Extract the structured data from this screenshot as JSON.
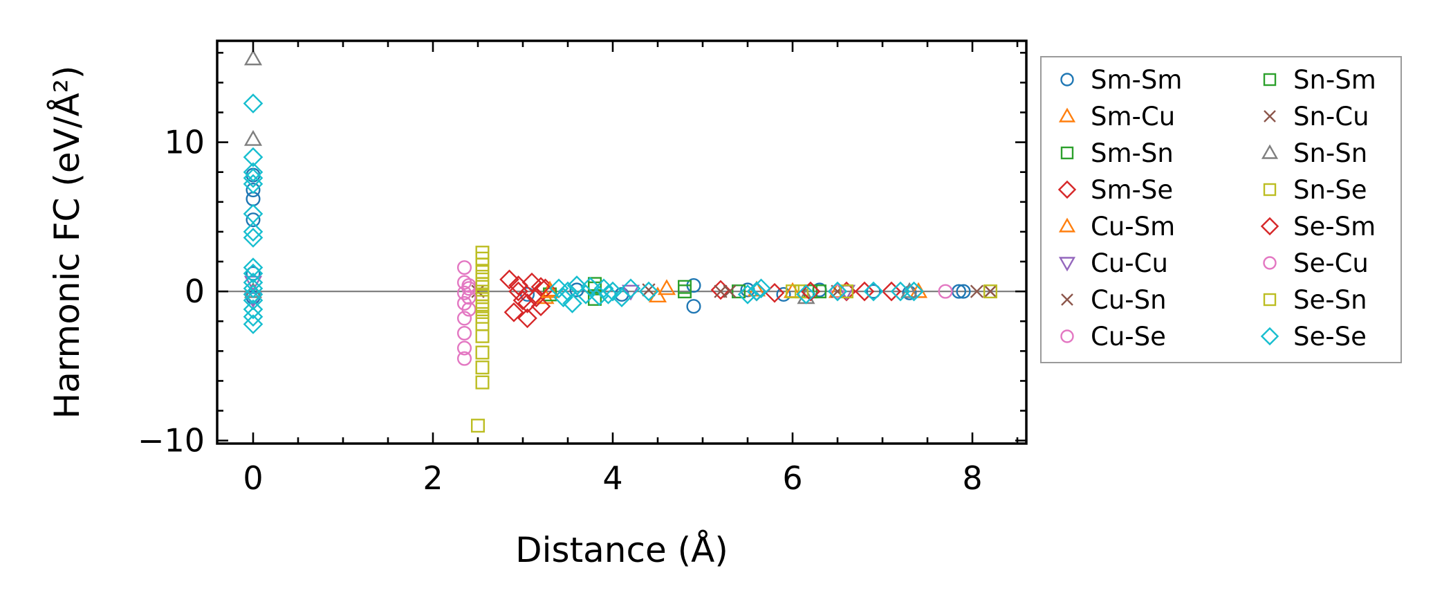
{
  "chart_data": {
    "type": "scatter",
    "xlabel": "Distance (Å)",
    "ylabel": "Harmonic FC (eV/Å²)",
    "xlim": [
      -0.4,
      8.6
    ],
    "ylim": [
      -10.2,
      16.8
    ],
    "xticks": [
      0,
      2,
      4,
      6,
      8
    ],
    "yticks": [
      -10,
      0,
      10
    ],
    "xtick_labels": [
      "0",
      "2",
      "4",
      "6",
      "8"
    ],
    "ytick_labels": [
      "−10",
      "0",
      "10"
    ],
    "zero_line": 0,
    "grid": false,
    "legend": "right, outside, 2 columns",
    "series": [
      {
        "name": "Sm-Sm",
        "color": "#1f77b4",
        "marker": "circle",
        "points": [
          [
            0,
            7.8
          ],
          [
            0,
            6.8
          ],
          [
            0,
            6.2
          ],
          [
            0,
            4.8
          ],
          [
            0,
            1.2
          ],
          [
            0,
            -0.4
          ],
          [
            3.05,
            -0.2
          ],
          [
            3.6,
            0.1
          ],
          [
            4.1,
            -0.2
          ],
          [
            4.9,
            -1.0
          ],
          [
            4.9,
            0.4
          ],
          [
            5.5,
            0.1
          ],
          [
            5.9,
            -0.2
          ],
          [
            6.3,
            0.1
          ],
          [
            6.9,
            0.0
          ],
          [
            7.3,
            -0.1
          ],
          [
            7.85,
            0.0
          ],
          [
            7.9,
            0.0
          ]
        ]
      },
      {
        "name": "Sm-Cu",
        "color": "#ff7f0e",
        "marker": "triangle-up",
        "points": [
          [
            3.25,
            -0.4
          ],
          [
            3.3,
            0.1
          ],
          [
            4.5,
            -0.3
          ],
          [
            5.6,
            0.1
          ],
          [
            6.5,
            0.0
          ],
          [
            7.4,
            0.0
          ]
        ]
      },
      {
        "name": "Sm-Sn",
        "color": "#2ca02c",
        "marker": "square",
        "points": [
          [
            3.3,
            -0.2
          ],
          [
            3.8,
            0.5
          ],
          [
            3.8,
            -0.5
          ],
          [
            4.8,
            0.3
          ],
          [
            5.4,
            0.0
          ],
          [
            6.3,
            0.0
          ]
        ]
      },
      {
        "name": "Sm-Se",
        "color": "#d62728",
        "marker": "diamond",
        "points": [
          [
            2.85,
            0.8
          ],
          [
            2.9,
            -1.4
          ],
          [
            2.95,
            0.4
          ],
          [
            3.0,
            -0.6
          ],
          [
            3.05,
            -1.8
          ],
          [
            3.1,
            0.6
          ],
          [
            3.15,
            -0.4
          ],
          [
            3.2,
            -1.0
          ],
          [
            3.25,
            0.2
          ],
          [
            5.2,
            0.1
          ],
          [
            5.8,
            -0.1
          ],
          [
            6.6,
            0.0
          ],
          [
            7.1,
            0.0
          ]
        ]
      },
      {
        "name": "Cu-Sm",
        "color": "#ff7f0e",
        "marker": "triangle-up",
        "points": [
          [
            3.3,
            0.0
          ],
          [
            4.6,
            0.2
          ],
          [
            6.0,
            0.0
          ]
        ]
      },
      {
        "name": "Cu-Cu",
        "color": "#9467bd",
        "marker": "triangle-down",
        "points": [
          [
            0,
            0.6
          ],
          [
            0,
            -0.5
          ],
          [
            4.2,
            0.0
          ],
          [
            6.6,
            0.0
          ]
        ]
      },
      {
        "name": "Cu-Sn",
        "color": "#8c564b",
        "marker": "x",
        "points": [
          [
            2.5,
            0.0
          ],
          [
            4.4,
            0.1
          ],
          [
            5.2,
            0.0
          ],
          [
            6.5,
            0.0
          ],
          [
            8.05,
            0.0
          ],
          [
            8.2,
            0.0
          ]
        ]
      },
      {
        "name": "Cu-Se",
        "color": "#e377c2",
        "marker": "circle",
        "points": [
          [
            2.35,
            1.6
          ],
          [
            2.35,
            0.6
          ],
          [
            2.35,
            -0.1
          ],
          [
            2.35,
            -0.8
          ],
          [
            2.35,
            -1.8
          ],
          [
            2.35,
            -2.8
          ],
          [
            2.35,
            -3.8
          ],
          [
            2.35,
            -4.5
          ],
          [
            2.4,
            0.2
          ],
          [
            2.4,
            -1.2
          ],
          [
            6.5,
            0.0
          ],
          [
            7.7,
            0.0
          ]
        ]
      },
      {
        "name": "Sn-Sm",
        "color": "#2ca02c",
        "marker": "square",
        "points": [
          [
            3.8,
            0.2
          ],
          [
            4.8,
            0.0
          ],
          [
            6.2,
            0.0
          ]
        ]
      },
      {
        "name": "Sn-Cu",
        "color": "#8c564b",
        "marker": "x",
        "points": [
          [
            5.3,
            0.0
          ],
          [
            8.2,
            0.0
          ]
        ]
      },
      {
        "name": "Sn-Sn",
        "color": "#7f7f7f",
        "marker": "triangle-up",
        "points": [
          [
            0,
            15.6
          ],
          [
            0,
            10.2
          ],
          [
            0,
            0.0
          ],
          [
            6.15,
            -0.4
          ],
          [
            7.3,
            0.0
          ]
        ]
      },
      {
        "name": "Sn-Se",
        "color": "#bcbd22",
        "marker": "square",
        "points": [
          [
            2.5,
            -9.0
          ],
          [
            2.55,
            2.6
          ],
          [
            2.55,
            2.2
          ],
          [
            2.55,
            1.8
          ],
          [
            2.55,
            1.3
          ],
          [
            2.55,
            0.8
          ],
          [
            2.55,
            0.3
          ],
          [
            2.55,
            -0.2
          ],
          [
            2.55,
            -0.7
          ],
          [
            2.55,
            -1.2
          ],
          [
            2.55,
            -1.7
          ],
          [
            2.55,
            -2.2
          ],
          [
            2.55,
            -4.1
          ],
          [
            2.55,
            -5.1
          ],
          [
            2.55,
            -6.1
          ],
          [
            6.1,
            0.0
          ],
          [
            6.6,
            0.0
          ],
          [
            8.2,
            0.0
          ]
        ]
      },
      {
        "name": "Se-Sm",
        "color": "#d62728",
        "marker": "diamond",
        "points": [
          [
            2.95,
            0.0
          ],
          [
            3.05,
            -0.8
          ],
          [
            3.2,
            0.3
          ],
          [
            5.6,
            0.0
          ],
          [
            6.2,
            0.0
          ],
          [
            6.8,
            0.0
          ]
        ]
      },
      {
        "name": "Se-Cu",
        "color": "#e377c2",
        "marker": "circle",
        "points": [
          [
            2.4,
            -0.4
          ],
          [
            2.4,
            0.4
          ]
        ]
      },
      {
        "name": "Se-Sn",
        "color": "#bcbd22",
        "marker": "square",
        "points": [
          [
            2.55,
            -3.0
          ],
          [
            2.55,
            -1.0
          ],
          [
            2.55,
            0.5
          ],
          [
            6.0,
            0.0
          ]
        ]
      },
      {
        "name": "Se-Se",
        "color": "#17becf",
        "marker": "diamond",
        "points": [
          [
            0,
            12.6
          ],
          [
            0,
            9.0
          ],
          [
            0,
            8.0
          ],
          [
            0,
            7.6
          ],
          [
            0,
            7.2
          ],
          [
            0,
            5.2
          ],
          [
            0,
            4.0
          ],
          [
            0,
            3.6
          ],
          [
            0,
            1.6
          ],
          [
            0,
            1.2
          ],
          [
            0,
            0.6
          ],
          [
            0,
            0.2
          ],
          [
            0,
            -0.2
          ],
          [
            0,
            -0.6
          ],
          [
            0,
            -1.2
          ],
          [
            0,
            -1.7
          ],
          [
            0,
            -2.2
          ],
          [
            3.4,
            0.2
          ],
          [
            3.45,
            -0.4
          ],
          [
            3.5,
            0.0
          ],
          [
            3.55,
            -0.8
          ],
          [
            3.6,
            0.4
          ],
          [
            3.7,
            -0.2
          ],
          [
            3.75,
            0.3
          ],
          [
            3.85,
            -0.3
          ],
          [
            3.9,
            0.2
          ],
          [
            3.95,
            -0.2
          ],
          [
            4.0,
            0.0
          ],
          [
            4.1,
            -0.4
          ],
          [
            4.2,
            0.2
          ],
          [
            4.4,
            0.0
          ],
          [
            5.5,
            -0.2
          ],
          [
            5.6,
            0.0
          ],
          [
            5.65,
            0.2
          ],
          [
            6.15,
            -0.2
          ],
          [
            6.5,
            0.0
          ],
          [
            6.9,
            0.0
          ],
          [
            7.2,
            0.0
          ],
          [
            7.35,
            0.0
          ]
        ]
      }
    ]
  }
}
